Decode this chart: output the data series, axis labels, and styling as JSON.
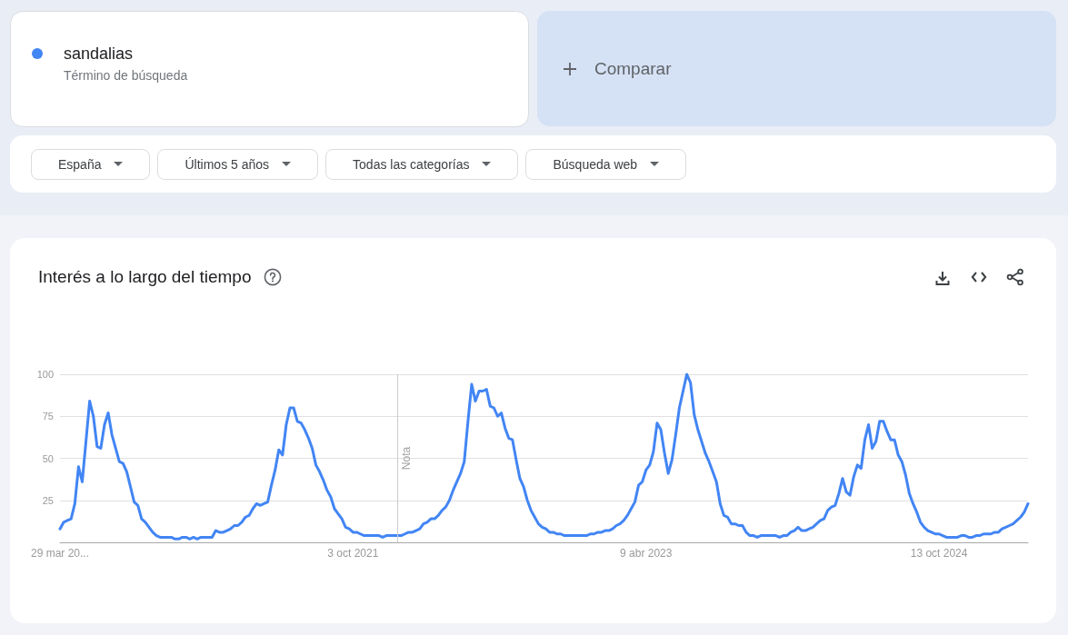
{
  "chart_data": {
    "type": "line",
    "title": "Interés a lo largo del tiempo",
    "annotations": [
      "Término de búsqueda",
      "Comparar",
      "España",
      "Últimos 5 años",
      "Todas las categorías",
      "Búsqueda web"
    ],
    "xlim": [
      "2020-03-29",
      "2025-03-30"
    ],
    "xticks": [
      {
        "value": "2020-03-29",
        "label": "29 mar 20..."
      },
      {
        "value": "2021-10-03",
        "label": "3 oct 2021"
      },
      {
        "value": "2023-04-09",
        "label": "9 abr 2023"
      },
      {
        "value": "2024-10-13",
        "label": "13 oct 2024"
      }
    ],
    "ylim": [
      0,
      100
    ],
    "yticks": [
      25,
      50,
      75,
      100
    ],
    "grid": "y",
    "legend": "top left",
    "marker": "none",
    "line_style": "solid",
    "ref_lines": [
      {
        "axis": "x",
        "value": "2021-12-26",
        "label": "Nota",
        "color": "#cccccc"
      }
    ],
    "series": [
      {
        "name": "sandalias",
        "color": "#4285f4",
        "x": [
          "2020-03-29",
          "2020-04-05",
          "2020-04-12",
          "2020-04-19",
          "2020-04-26",
          "2020-05-03",
          "2020-05-10",
          "2020-05-17",
          "2020-05-24",
          "2020-05-31",
          "2020-06-07",
          "2020-06-14",
          "2020-06-21",
          "2020-06-28",
          "2020-07-05",
          "2020-07-12",
          "2020-07-19",
          "2020-07-26",
          "2020-08-02",
          "2020-08-09",
          "2020-08-16",
          "2020-08-23",
          "2020-08-30",
          "2020-09-06",
          "2020-09-13",
          "2020-09-20",
          "2020-09-27",
          "2020-10-04",
          "2020-10-11",
          "2020-10-18",
          "2020-10-25",
          "2020-11-01",
          "2020-11-08",
          "2020-11-15",
          "2020-11-22",
          "2020-11-29",
          "2020-12-06",
          "2020-12-13",
          "2020-12-20",
          "2020-12-27",
          "2021-01-03",
          "2021-01-10",
          "2021-01-17",
          "2021-01-24",
          "2021-01-31",
          "2021-02-07",
          "2021-02-14",
          "2021-02-21",
          "2021-02-28",
          "2021-03-07",
          "2021-03-14",
          "2021-03-21",
          "2021-03-28",
          "2021-04-04",
          "2021-04-11",
          "2021-04-18",
          "2021-04-25",
          "2021-05-02",
          "2021-05-09",
          "2021-05-16",
          "2021-05-23",
          "2021-05-30",
          "2021-06-06",
          "2021-06-13",
          "2021-06-20",
          "2021-06-27",
          "2021-07-04",
          "2021-07-11",
          "2021-07-18",
          "2021-07-25",
          "2021-08-01",
          "2021-08-08",
          "2021-08-15",
          "2021-08-22",
          "2021-08-29",
          "2021-09-05",
          "2021-09-12",
          "2021-09-19",
          "2021-09-26",
          "2021-10-03",
          "2021-10-10",
          "2021-10-17",
          "2021-10-24",
          "2021-10-31",
          "2021-11-07",
          "2021-11-14",
          "2021-11-21",
          "2021-11-28",
          "2021-12-05",
          "2021-12-12",
          "2021-12-19",
          "2021-12-26",
          "2022-01-02",
          "2022-01-09",
          "2022-01-16",
          "2022-01-23",
          "2022-01-30",
          "2022-02-06",
          "2022-02-13",
          "2022-02-20",
          "2022-02-27",
          "2022-03-06",
          "2022-03-13",
          "2022-03-20",
          "2022-03-27",
          "2022-04-03",
          "2022-04-10",
          "2022-04-17",
          "2022-04-24",
          "2022-05-01",
          "2022-05-08",
          "2022-05-15",
          "2022-05-22",
          "2022-05-29",
          "2022-06-05",
          "2022-06-12",
          "2022-06-19",
          "2022-06-26",
          "2022-07-03",
          "2022-07-10",
          "2022-07-17",
          "2022-07-24",
          "2022-07-31",
          "2022-08-07",
          "2022-08-14",
          "2022-08-21",
          "2022-08-28",
          "2022-09-04",
          "2022-09-11",
          "2022-09-18",
          "2022-09-25",
          "2022-10-02",
          "2022-10-09",
          "2022-10-16",
          "2022-10-23",
          "2022-10-30",
          "2022-11-06",
          "2022-11-13",
          "2022-11-20",
          "2022-11-27",
          "2022-12-04",
          "2022-12-11",
          "2022-12-18",
          "2022-12-25",
          "2023-01-01",
          "2023-01-08",
          "2023-01-15",
          "2023-01-22",
          "2023-01-29",
          "2023-02-05",
          "2023-02-12",
          "2023-02-19",
          "2023-02-26",
          "2023-03-05",
          "2023-03-12",
          "2023-03-19",
          "2023-03-26",
          "2023-04-02",
          "2023-04-09",
          "2023-04-16",
          "2023-04-23",
          "2023-04-30",
          "2023-05-07",
          "2023-05-14",
          "2023-05-21",
          "2023-05-28",
          "2023-06-04",
          "2023-06-11",
          "2023-06-18",
          "2023-06-25",
          "2023-07-02",
          "2023-07-09",
          "2023-07-16",
          "2023-07-23",
          "2023-07-30",
          "2023-08-06",
          "2023-08-13",
          "2023-08-20",
          "2023-08-27",
          "2023-09-03",
          "2023-09-10",
          "2023-09-17",
          "2023-09-24",
          "2023-10-01",
          "2023-10-08",
          "2023-10-15",
          "2023-10-22",
          "2023-10-29",
          "2023-11-05",
          "2023-11-12",
          "2023-11-19",
          "2023-11-26",
          "2023-12-03",
          "2023-12-10",
          "2023-12-17",
          "2023-12-24",
          "2023-12-31",
          "2024-01-07",
          "2024-01-14",
          "2024-01-21",
          "2024-01-28",
          "2024-02-04",
          "2024-02-11",
          "2024-02-18",
          "2024-02-25",
          "2024-03-03",
          "2024-03-10",
          "2024-03-17",
          "2024-03-24",
          "2024-03-31",
          "2024-04-07",
          "2024-04-14",
          "2024-04-21",
          "2024-04-28",
          "2024-05-05",
          "2024-05-12",
          "2024-05-19",
          "2024-05-26",
          "2024-06-02",
          "2024-06-09",
          "2024-06-16",
          "2024-06-23",
          "2024-06-30",
          "2024-07-07",
          "2024-07-14",
          "2024-07-21",
          "2024-07-28",
          "2024-08-04",
          "2024-08-11",
          "2024-08-18",
          "2024-08-25",
          "2024-09-01",
          "2024-09-08",
          "2024-09-15",
          "2024-09-22",
          "2024-09-29",
          "2024-10-06",
          "2024-10-13",
          "2024-10-20",
          "2024-10-27",
          "2024-11-03",
          "2024-11-10",
          "2024-11-17",
          "2024-11-24",
          "2024-12-01",
          "2024-12-08",
          "2024-12-15",
          "2024-12-22",
          "2024-12-29",
          "2025-01-05",
          "2025-01-12",
          "2025-01-19",
          "2025-01-26",
          "2025-02-02",
          "2025-02-09",
          "2025-02-16",
          "2025-02-23",
          "2025-03-02",
          "2025-03-09",
          "2025-03-16",
          "2025-03-23",
          "2025-03-30"
        ],
        "values": [
          8,
          12,
          13,
          14,
          23,
          45,
          36,
          60,
          84,
          75,
          57,
          56,
          70,
          77,
          64,
          56,
          48,
          47,
          42,
          33,
          24,
          22,
          14,
          12,
          9,
          6,
          4,
          3,
          3,
          3,
          3,
          2,
          2,
          3,
          3,
          2,
          3,
          2,
          3,
          3,
          3,
          3,
          7,
          6,
          6,
          7,
          8,
          10,
          10,
          12,
          15,
          16,
          20,
          23,
          22,
          23,
          24,
          34,
          43,
          55,
          52,
          70,
          80,
          80,
          72,
          71,
          67,
          62,
          56,
          46,
          42,
          37,
          31,
          27,
          20,
          17,
          14,
          9,
          8,
          6,
          6,
          5,
          4,
          4,
          4,
          4,
          4,
          3,
          4,
          4,
          4,
          4,
          4,
          5,
          6,
          6,
          7,
          8,
          11,
          12,
          14,
          14,
          16,
          19,
          21,
          25,
          31,
          36,
          41,
          48,
          72,
          94,
          84,
          90,
          90,
          91,
          81,
          80,
          75,
          77,
          68,
          62,
          61,
          49,
          38,
          33,
          25,
          19,
          15,
          11,
          9,
          8,
          6,
          6,
          5,
          5,
          4,
          4,
          4,
          4,
          4,
          4,
          4,
          5,
          5,
          6,
          6,
          7,
          7,
          8,
          10,
          11,
          13,
          16,
          20,
          24,
          34,
          36,
          43,
          46,
          54,
          71,
          67,
          53,
          41,
          49,
          64,
          80,
          90,
          100,
          95,
          76,
          67,
          60,
          53,
          48,
          42,
          36,
          23,
          16,
          15,
          11,
          11,
          10,
          10,
          6,
          4,
          4,
          3,
          4,
          4,
          4,
          4,
          4,
          3,
          4,
          4,
          6,
          7,
          9,
          7,
          7,
          8,
          9,
          11,
          13,
          14,
          19,
          21,
          22,
          29,
          38,
          30,
          28,
          39,
          46,
          44,
          61,
          70,
          56,
          60,
          72,
          72,
          66,
          61,
          61,
          52,
          48,
          40,
          29,
          23,
          18,
          12,
          9,
          7,
          6,
          5,
          5,
          4,
          3,
          3,
          3,
          3,
          4,
          4,
          3,
          3,
          4,
          4,
          5,
          5,
          5,
          6,
          6,
          8,
          9,
          10,
          11,
          13,
          15,
          18,
          23
        ]
      }
    ]
  }
}
